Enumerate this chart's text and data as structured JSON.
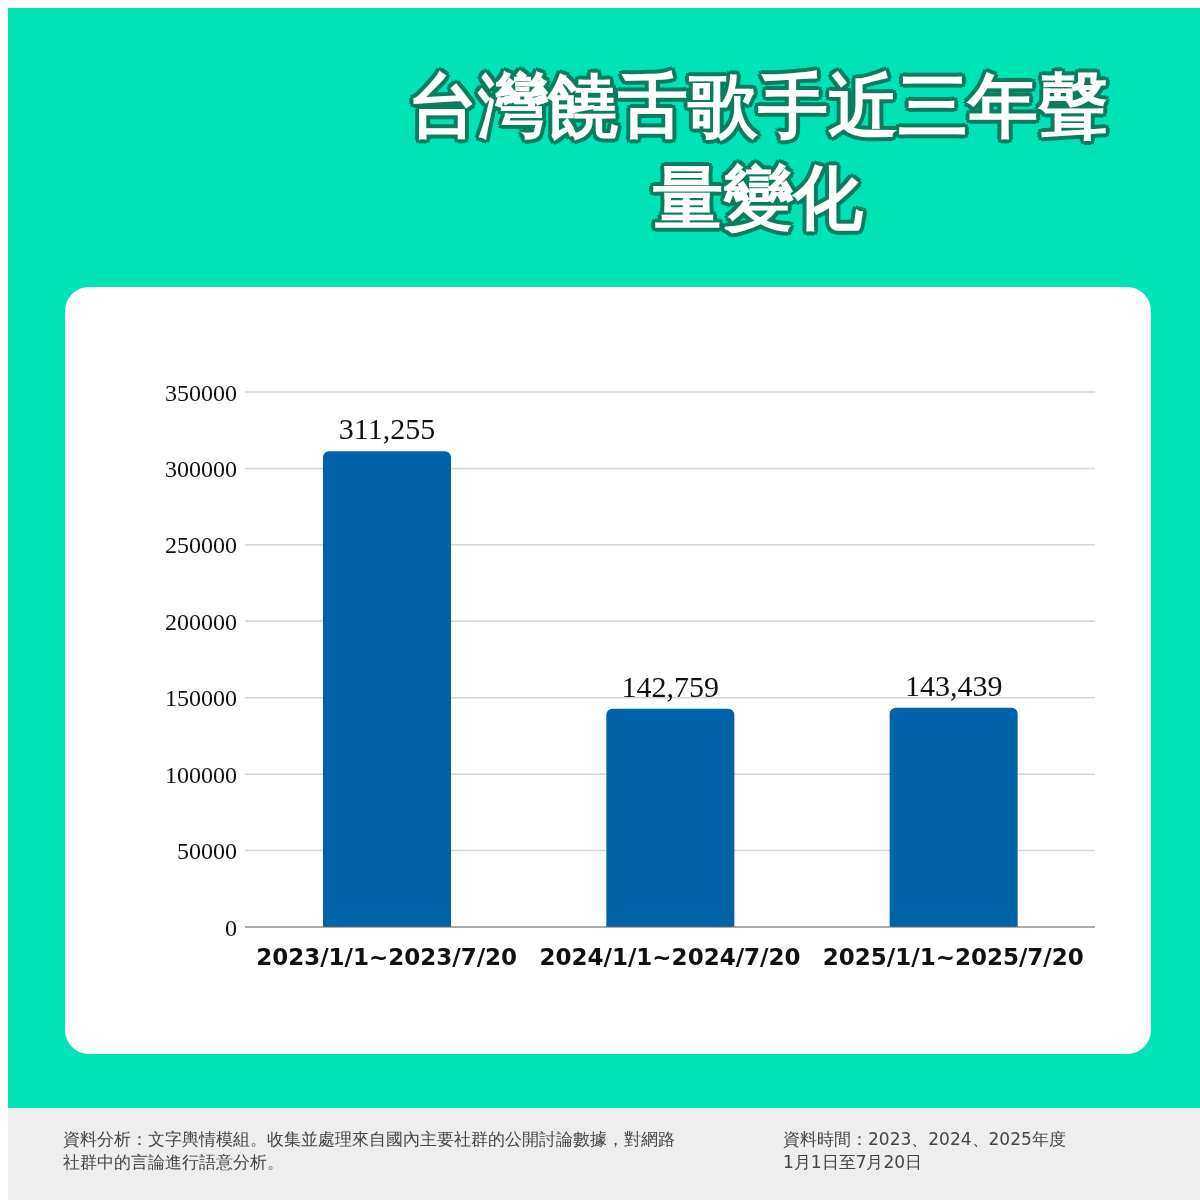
{
  "chart_data": {
    "type": "bar",
    "title": "台灣饒舌歌手近三年聲量變化",
    "categories": [
      "2023/1/1~2023/7/20",
      "2024/1/1~2024/7/20",
      "2025/1/1~2025/7/20"
    ],
    "values": [
      311255,
      142759,
      143439
    ],
    "color": "#0063a8",
    "value_labels": [
      "311,255",
      "142,759",
      "143,439"
    ],
    "ylim": [
      0,
      350000
    ],
    "yticks": [
      0,
      50000,
      100000,
      150000,
      200000,
      250000,
      300000,
      350000
    ],
    "grid": "y",
    "legend": false,
    "annotations": [
      "資料分析：文字輿情模組。收集並處理來自國內主要社群的公開討論數據，對網路社群中的言論進行語意分析。",
      "資料時間：2023、2024、2025年度1月1日至7月20日"
    ]
  }
}
